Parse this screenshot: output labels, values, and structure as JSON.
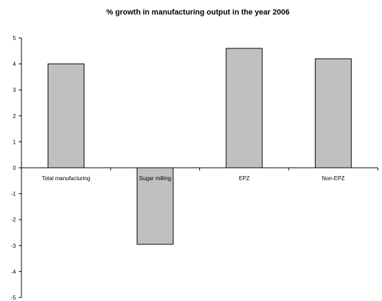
{
  "chart_data": {
    "type": "bar",
    "title": "% growth in manufacturing output in the year 2006",
    "xlabel": "",
    "ylabel": "",
    "categories": [
      "Total manufacturing",
      "Sugar milling",
      "EPZ",
      "Non-EPZ"
    ],
    "values": [
      4.0,
      -2.95,
      4.6,
      4.2
    ],
    "ylim": [
      -5,
      5
    ],
    "yticks": [
      5,
      4,
      3,
      2,
      1,
      0,
      -1,
      -2,
      -3,
      -4,
      -5
    ],
    "grid": false,
    "legend": "none",
    "colors": {
      "bar_fill": "#c0c0c0",
      "bar_stroke": "#000000",
      "axis": "#000000"
    }
  }
}
